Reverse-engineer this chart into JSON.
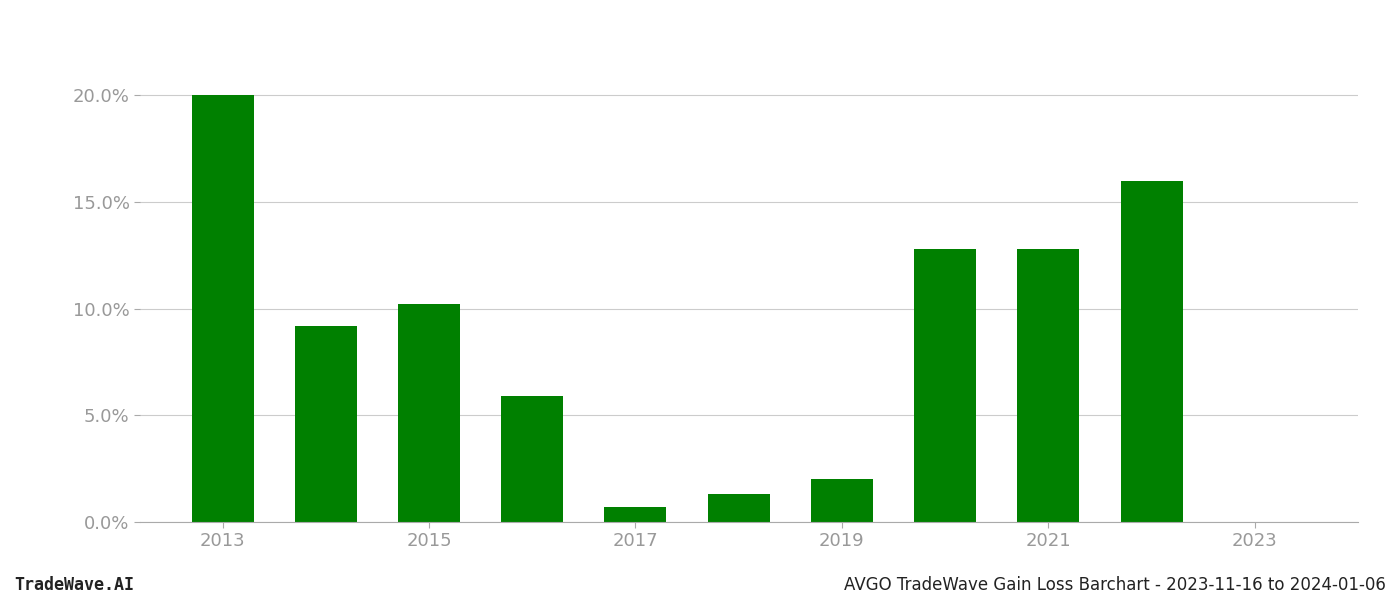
{
  "years": [
    2013,
    2014,
    2015,
    2016,
    2017,
    2018,
    2019,
    2020,
    2021,
    2022,
    2023
  ],
  "values": [
    0.2,
    0.092,
    0.102,
    0.059,
    0.007,
    0.013,
    0.02,
    0.128,
    0.128,
    0.16,
    0.0
  ],
  "bar_color": "#008000",
  "background_color": "#ffffff",
  "ylim": [
    0,
    0.225
  ],
  "yticks": [
    0.0,
    0.05,
    0.1,
    0.15,
    0.2
  ],
  "ytick_labels": [
    "0.0%",
    "5.0%",
    "10.0%",
    "15.0%",
    "20.0%"
  ],
  "xtick_years": [
    2013,
    2015,
    2017,
    2019,
    2021,
    2023
  ],
  "grid_color": "#cccccc",
  "footer_left": "TradeWave.AI",
  "footer_right": "AVGO TradeWave Gain Loss Barchart - 2023-11-16 to 2024-01-06",
  "footer_fontsize": 12,
  "axis_label_color": "#999999",
  "bar_width": 0.6,
  "xlim": [
    2012.2,
    2024.0
  ]
}
